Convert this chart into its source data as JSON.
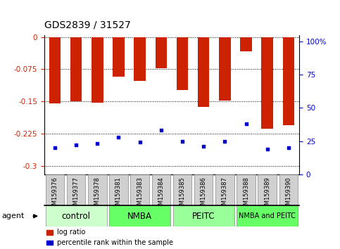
{
  "title": "GDS2839 / 31527",
  "samples": [
    "GSM159376",
    "GSM159377",
    "GSM159378",
    "GSM159381",
    "GSM159383",
    "GSM159384",
    "GSM159385",
    "GSM159386",
    "GSM159387",
    "GSM159388",
    "GSM159389",
    "GSM159390"
  ],
  "log_ratios": [
    -0.155,
    -0.15,
    -0.153,
    -0.093,
    -0.103,
    -0.073,
    -0.123,
    -0.163,
    -0.148,
    -0.033,
    -0.213,
    -0.205
  ],
  "percentile_ranks": [
    20,
    22,
    23,
    28,
    24,
    33,
    25,
    21,
    25,
    38,
    19,
    20
  ],
  "groups": [
    {
      "label": "control",
      "start": 0,
      "end": 3,
      "color": "#ccffcc"
    },
    {
      "label": "NMBA",
      "start": 3,
      "end": 6,
      "color": "#66ff66"
    },
    {
      "label": "PEITC",
      "start": 6,
      "end": 9,
      "color": "#99ff99"
    },
    {
      "label": "NMBA and PEITC",
      "start": 9,
      "end": 12,
      "color": "#66ff66"
    }
  ],
  "bar_color": "#cc2200",
  "dot_color": "#0000cc",
  "ylim_left": [
    -0.32,
    0.005
  ],
  "ylim_right": [
    0,
    105
  ],
  "yticks_left": [
    0,
    -0.075,
    -0.15,
    -0.225,
    -0.3
  ],
  "yticks_right": [
    0,
    25,
    50,
    75,
    100
  ],
  "grid_lines": [
    0,
    -0.075,
    -0.15,
    -0.225,
    -0.3
  ],
  "bar_width": 0.55,
  "background_color": "#ffffff",
  "plot_bg": "#ffffff",
  "tick_label_color_left": "#cc2200",
  "tick_label_color_right": "#0000cc"
}
